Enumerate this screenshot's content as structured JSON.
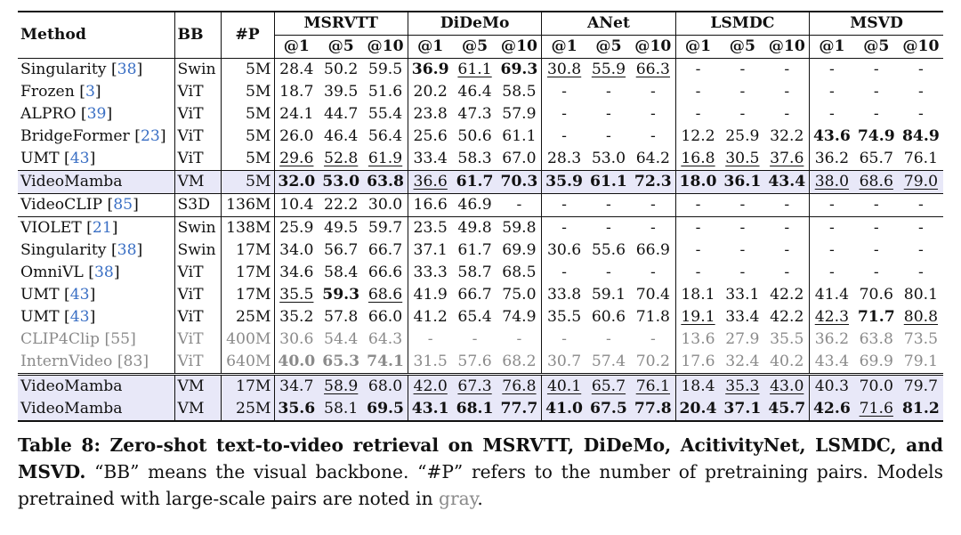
{
  "table": {
    "header": {
      "method": "Method",
      "bb": "BB",
      "params": "#P",
      "datasets": [
        "MSRVTT",
        "DiDeMo",
        "ANet",
        "LSMDC",
        "MSVD"
      ],
      "recall_labels": [
        "@1",
        "@5",
        "@10"
      ]
    },
    "rows": [
      {
        "method": "Singularity",
        "ref": "38",
        "bb": "Swin",
        "params": "5M",
        "vals": [
          "28.4",
          "50.2",
          "59.5",
          "36.9",
          "61.1",
          "69.3",
          "30.8",
          "55.9",
          "66.3",
          "-",
          "-",
          "-",
          "-",
          "-",
          "-"
        ]
      },
      {
        "method": "Frozen",
        "ref": "3",
        "bb": "ViT",
        "params": "5M",
        "vals": [
          "18.7",
          "39.5",
          "51.6",
          "20.2",
          "46.4",
          "58.5",
          "-",
          "-",
          "-",
          "-",
          "-",
          "-",
          "-",
          "-",
          "-"
        ]
      },
      {
        "method": "ALPRO",
        "ref": "39",
        "bb": "ViT",
        "params": "5M",
        "vals": [
          "24.1",
          "44.7",
          "55.4",
          "23.8",
          "47.3",
          "57.9",
          "-",
          "-",
          "-",
          "-",
          "-",
          "-",
          "-",
          "-",
          "-"
        ]
      },
      {
        "method": "BridgeFormer",
        "ref": "23",
        "bb": "ViT",
        "params": "5M",
        "vals": [
          "26.0",
          "46.4",
          "56.4",
          "25.6",
          "50.6",
          "61.1",
          "-",
          "-",
          "-",
          "12.2",
          "25.9",
          "32.2",
          "43.6",
          "74.9",
          "84.9"
        ]
      },
      {
        "method": "UMT",
        "ref": "43",
        "bb": "ViT",
        "params": "5M",
        "vals": [
          "29.6",
          "52.8",
          "61.9",
          "33.4",
          "58.3",
          "67.0",
          "28.3",
          "53.0",
          "64.2",
          "16.8",
          "30.5",
          "37.6",
          "36.2",
          "65.7",
          "76.1"
        ]
      },
      {
        "method": "VideoMamba",
        "ref": "",
        "bb": "VM",
        "params": "5M",
        "vals": [
          "32.0",
          "53.0",
          "63.8",
          "36.6",
          "61.7",
          "70.3",
          "35.9",
          "61.1",
          "72.3",
          "18.0",
          "36.1",
          "43.4",
          "38.0",
          "68.6",
          "79.0"
        ]
      },
      {
        "method": "VideoCLIP",
        "ref": "85",
        "bb": "S3D",
        "params": "136M",
        "vals": [
          "10.4",
          "22.2",
          "30.0",
          "16.6",
          "46.9",
          "-",
          "-",
          "-",
          "-",
          "-",
          "-",
          "-",
          "-",
          "-",
          "-"
        ]
      },
      {
        "method": "VIOLET",
        "ref": "21",
        "bb": "Swin",
        "params": "138M",
        "vals": [
          "25.9",
          "49.5",
          "59.7",
          "23.5",
          "49.8",
          "59.8",
          "-",
          "-",
          "-",
          "-",
          "-",
          "-",
          "-",
          "-",
          "-"
        ]
      },
      {
        "method": "Singularity",
        "ref": "38",
        "bb": "Swin",
        "params": "17M",
        "vals": [
          "34.0",
          "56.7",
          "66.7",
          "37.1",
          "61.7",
          "69.9",
          "30.6",
          "55.6",
          "66.9",
          "-",
          "-",
          "-",
          "-",
          "-",
          "-"
        ]
      },
      {
        "method": "OmniVL",
        "ref": "38",
        "bb": "ViT",
        "params": "17M",
        "vals": [
          "34.6",
          "58.4",
          "66.6",
          "33.3",
          "58.7",
          "68.5",
          "-",
          "-",
          "-",
          "-",
          "-",
          "-",
          "-",
          "-",
          "-"
        ]
      },
      {
        "method": "UMT",
        "ref": "43",
        "bb": "ViT",
        "params": "17M",
        "vals": [
          "35.5",
          "59.3",
          "68.6",
          "41.9",
          "66.7",
          "75.0",
          "33.8",
          "59.1",
          "70.4",
          "18.1",
          "33.1",
          "42.2",
          "41.4",
          "70.6",
          "80.1"
        ]
      },
      {
        "method": "UMT",
        "ref": "43",
        "bb": "ViT",
        "params": "25M",
        "vals": [
          "35.2",
          "57.8",
          "66.0",
          "41.2",
          "65.4",
          "74.9",
          "35.5",
          "60.6",
          "71.8",
          "19.1",
          "33.4",
          "42.2",
          "42.3",
          "71.7",
          "80.8"
        ]
      },
      {
        "method": "CLIP4Clip",
        "ref": "55",
        "bb": "ViT",
        "params": "400M",
        "vals": [
          "30.6",
          "54.4",
          "64.3",
          "-",
          "-",
          "-",
          "-",
          "-",
          "-",
          "13.6",
          "27.9",
          "35.5",
          "36.2",
          "63.8",
          "73.5"
        ]
      },
      {
        "method": "InternVideo",
        "ref": "83",
        "bb": "ViT",
        "params": "640M",
        "vals": [
          "40.0",
          "65.3",
          "74.1",
          "31.5",
          "57.6",
          "68.2",
          "30.7",
          "57.4",
          "70.2",
          "17.6",
          "32.4",
          "40.2",
          "43.4",
          "69.9",
          "79.1"
        ]
      },
      {
        "method": "VideoMamba",
        "ref": "",
        "bb": "VM",
        "params": "17M",
        "vals": [
          "34.7",
          "58.9",
          "68.0",
          "42.0",
          "67.3",
          "76.8",
          "40.1",
          "65.7",
          "76.1",
          "18.4",
          "35.3",
          "43.0",
          "40.3",
          "70.0",
          "79.7"
        ]
      },
      {
        "method": "VideoMamba",
        "ref": "",
        "bb": "VM",
        "params": "25M",
        "vals": [
          "35.6",
          "58.1",
          "69.5",
          "43.1",
          "68.1",
          "77.7",
          "41.0",
          "67.5",
          "77.8",
          "20.4",
          "37.1",
          "45.7",
          "42.6",
          "71.6",
          "81.2"
        ]
      }
    ]
  },
  "caption": {
    "bold": "Table 8: Zero-shot text-to-video retrieval on MSRVTT, DiDeMo, AcitivityNet, LSMDC, and MSVD.",
    "text1": " “BB” means the visual backbone. “#P” refers to the number of pretraining pairs. Models pretrained with large-scale pairs are noted in ",
    "gray_word": "gray",
    "text2": "."
  },
  "colors": {
    "highlight_row": "#e8e8f8",
    "citation": "#3a6fc4",
    "gray_text": "#8a8a8a"
  }
}
